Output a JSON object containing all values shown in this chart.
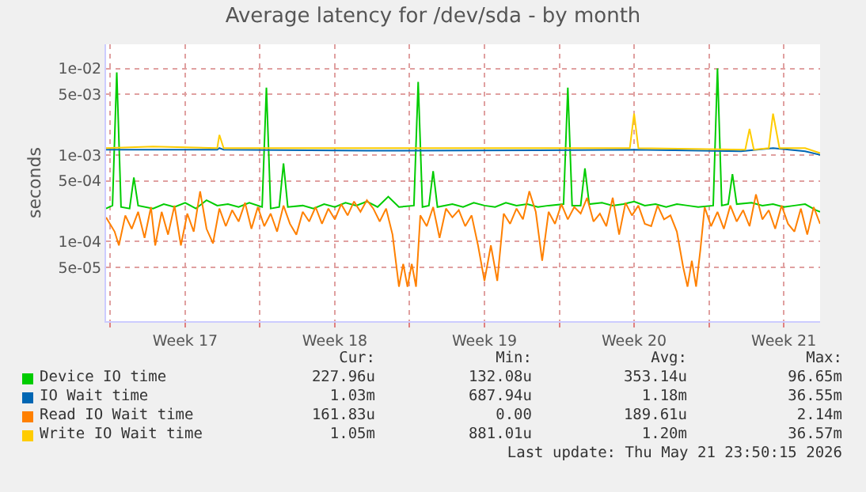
{
  "chart_data": {
    "type": "line",
    "title": "Average latency for /dev/sda - by month",
    "ylabel": "seconds",
    "log": "y",
    "grid": true,
    "legend": "bottom",
    "marker": "none",
    "line_style": "solid",
    "xlim": [
      "2026-04-19T19:12",
      "2026-05-23T04:48"
    ],
    "xticks": [
      {
        "value": "2026-04-20",
        "label": null
      },
      {
        "value": "2026-04-23T12:00",
        "label": "Week 17"
      },
      {
        "value": "2026-04-27",
        "label": null
      },
      {
        "value": "2026-04-30T12:00",
        "label": "Week 18"
      },
      {
        "value": "2026-05-04",
        "label": null
      },
      {
        "value": "2026-05-07T12:00",
        "label": "Week 19"
      },
      {
        "value": "2026-05-11",
        "label": null
      },
      {
        "value": "2026-05-14T12:00",
        "label": "Week 20"
      },
      {
        "value": "2026-05-18",
        "label": null
      },
      {
        "value": "2026-05-21T12:00",
        "label": "Week 21"
      }
    ],
    "ylim": [
      1.2e-05,
      0.019
    ],
    "yticks": [
      {
        "value": 0.01,
        "label": "1e-02"
      },
      {
        "value": 0.005,
        "label": "5e-03"
      },
      {
        "value": 0.001,
        "label": "1e-03"
      },
      {
        "value": 0.0005,
        "label": "5e-04"
      },
      {
        "value": 0.0001,
        "label": "1e-04"
      },
      {
        "value": 5e-05,
        "label": "5e-05"
      }
    ],
    "series": [
      {
        "name": "Device IO time",
        "color": "#00cc00",
        "x": [
          "2026-04-19T19:12",
          "2026-04-20T02:24",
          "2026-04-20T07:12",
          "2026-04-20T12:00",
          "2026-04-20T21:36",
          "2026-04-21T02:24",
          "2026-04-21T07:12",
          "2026-04-22T00:00",
          "2026-04-22T12:00",
          "2026-04-23T00:00",
          "2026-04-23T12:00",
          "2026-04-24T00:00",
          "2026-04-24T12:00",
          "2026-04-25T00:00",
          "2026-04-25T12:00",
          "2026-04-26T00:00",
          "2026-04-26T12:00",
          "2026-04-27T02:24",
          "2026-04-27T07:12",
          "2026-04-27T12:00",
          "2026-04-27T21:36",
          "2026-04-28T02:24",
          "2026-04-28T07:12",
          "2026-04-29T00:00",
          "2026-04-29T12:00",
          "2026-04-30T00:00",
          "2026-04-30T12:00",
          "2026-05-01T00:00",
          "2026-05-01T12:00",
          "2026-05-02T00:00",
          "2026-05-02T12:00",
          "2026-05-03T00:00",
          "2026-05-03T12:00",
          "2026-05-04T04:48",
          "2026-05-04T09:36",
          "2026-05-04T14:24",
          "2026-05-04T21:36",
          "2026-05-05T02:24",
          "2026-05-05T07:12",
          "2026-05-06T00:00",
          "2026-05-06T12:00",
          "2026-05-07T00:00",
          "2026-05-07T12:00",
          "2026-05-08T00:00",
          "2026-05-08T12:00",
          "2026-05-09T00:00",
          "2026-05-09T12:00",
          "2026-05-10T00:00",
          "2026-05-10T12:00",
          "2026-05-11T04:48",
          "2026-05-11T09:36",
          "2026-05-11T14:24",
          "2026-05-12T00:00",
          "2026-05-12T04:48",
          "2026-05-12T09:36",
          "2026-05-13T00:00",
          "2026-05-13T12:00",
          "2026-05-14T00:00",
          "2026-05-14T12:00",
          "2026-05-15T00:00",
          "2026-05-15T12:00",
          "2026-05-16T00:00",
          "2026-05-16T12:00",
          "2026-05-17T00:00",
          "2026-05-17T12:00",
          "2026-05-18T04:48",
          "2026-05-18T09:36",
          "2026-05-18T14:24",
          "2026-05-18T21:36",
          "2026-05-19T02:24",
          "2026-05-19T07:12",
          "2026-05-20T00:00",
          "2026-05-20T12:00",
          "2026-05-21T00:00",
          "2026-05-21T12:00",
          "2026-05-22T00:00",
          "2026-05-22T12:00",
          "2026-05-23T00:00",
          "2026-05-23T04:48"
        ],
        "values": [
          0.00024,
          0.00026,
          0.009,
          0.00025,
          0.00024,
          0.00055,
          0.00026,
          0.00024,
          0.00027,
          0.00025,
          0.00028,
          0.00024,
          0.0003,
          0.00026,
          0.00027,
          0.00025,
          0.00028,
          0.00025,
          0.006,
          0.00024,
          0.00025,
          0.0008,
          0.00025,
          0.00026,
          0.00024,
          0.00027,
          0.00025,
          0.00028,
          0.00026,
          0.00029,
          0.00025,
          0.00033,
          0.00025,
          0.00026,
          0.007,
          0.00025,
          0.00026,
          0.00065,
          0.00025,
          0.00027,
          0.00025,
          0.00028,
          0.00026,
          0.00025,
          0.00028,
          0.00026,
          0.00027,
          0.00025,
          0.00026,
          0.00027,
          0.006,
          0.00026,
          0.00026,
          0.0007,
          0.00027,
          0.00028,
          0.00026,
          0.00027,
          0.00029,
          0.00026,
          0.00027,
          0.00025,
          0.00027,
          0.00026,
          0.00025,
          0.00026,
          0.01,
          0.00026,
          0.00027,
          0.0006,
          0.00027,
          0.00028,
          0.00026,
          0.00027,
          0.00025,
          0.00026,
          0.00027,
          0.00023,
          0.00022
        ]
      },
      {
        "name": "IO Wait time",
        "color": "#0066b3",
        "x": [
          "2026-04-19T19:12",
          "2026-04-25T00:00",
          "2026-04-25T02:24",
          "2026-04-25T07:12",
          "2026-05-02T00:00",
          "2026-05-10T00:00",
          "2026-05-14T12:00",
          "2026-05-19T12:00",
          "2026-05-21T00:00",
          "2026-05-22T12:00",
          "2026-05-23T04:48"
        ],
        "values": [
          0.00115,
          0.00115,
          0.0012,
          0.00115,
          0.00112,
          0.00113,
          0.00115,
          0.0011,
          0.0012,
          0.0011,
          0.001
        ]
      },
      {
        "name": "Read IO Wait time",
        "color": "#ff8000",
        "x": [
          "2026-04-19T19:12",
          "2026-04-20T04:48",
          "2026-04-20T09:36",
          "2026-04-20T16:48",
          "2026-04-21T00:00",
          "2026-04-21T07:12",
          "2026-04-21T14:24",
          "2026-04-21T21:36",
          "2026-04-22T02:24",
          "2026-04-22T09:36",
          "2026-04-22T16:48",
          "2026-04-23T00:00",
          "2026-04-23T07:12",
          "2026-04-23T14:24",
          "2026-04-23T21:36",
          "2026-04-24T04:48",
          "2026-04-24T12:00",
          "2026-04-24T19:12",
          "2026-04-25T02:24",
          "2026-04-25T09:36",
          "2026-04-25T16:48",
          "2026-04-26T00:00",
          "2026-04-26T07:12",
          "2026-04-26T14:24",
          "2026-04-26T21:36",
          "2026-04-27T04:48",
          "2026-04-27T12:00",
          "2026-04-27T19:12",
          "2026-04-28T02:24",
          "2026-04-28T09:36",
          "2026-04-28T16:48",
          "2026-04-29T00:00",
          "2026-04-29T07:12",
          "2026-04-29T14:24",
          "2026-04-29T21:36",
          "2026-04-30T04:48",
          "2026-04-30T12:00",
          "2026-04-30T19:12",
          "2026-05-01T02:24",
          "2026-05-01T09:36",
          "2026-05-01T16:48",
          "2026-05-02T00:00",
          "2026-05-02T07:12",
          "2026-05-02T14:24",
          "2026-05-02T21:36",
          "2026-05-03T04:48",
          "2026-05-03T12:00",
          "2026-05-03T16:48",
          "2026-05-03T21:36",
          "2026-05-04T02:24",
          "2026-05-04T07:12",
          "2026-05-04T12:00",
          "2026-05-04T19:12",
          "2026-05-05T02:24",
          "2026-05-05T09:36",
          "2026-05-05T16:48",
          "2026-05-06T00:00",
          "2026-05-06T07:12",
          "2026-05-06T14:24",
          "2026-05-06T21:36",
          "2026-05-07T04:48",
          "2026-05-07T12:00",
          "2026-05-07T19:12",
          "2026-05-08T02:24",
          "2026-05-08T09:36",
          "2026-05-08T16:48",
          "2026-05-09T00:00",
          "2026-05-09T07:12",
          "2026-05-09T14:24",
          "2026-05-09T21:36",
          "2026-05-10T04:48",
          "2026-05-10T12:00",
          "2026-05-10T19:12",
          "2026-05-11T02:24",
          "2026-05-11T09:36",
          "2026-05-11T16:48",
          "2026-05-12T00:00",
          "2026-05-12T07:12",
          "2026-05-12T14:24",
          "2026-05-12T21:36",
          "2026-05-13T04:48",
          "2026-05-13T12:00",
          "2026-05-13T19:12",
          "2026-05-14T02:24",
          "2026-05-14T09:36",
          "2026-05-14T16:48",
          "2026-05-15T00:00",
          "2026-05-15T07:12",
          "2026-05-15T14:24",
          "2026-05-15T21:36",
          "2026-05-16T04:48",
          "2026-05-16T12:00",
          "2026-05-16T19:12",
          "2026-05-17T00:00",
          "2026-05-17T04:48",
          "2026-05-17T09:36",
          "2026-05-17T14:24",
          "2026-05-17T19:12",
          "2026-05-18T02:24",
          "2026-05-18T09:36",
          "2026-05-18T16:48",
          "2026-05-19T00:00",
          "2026-05-19T07:12",
          "2026-05-19T14:24",
          "2026-05-19T21:36",
          "2026-05-20T04:48",
          "2026-05-20T12:00",
          "2026-05-20T19:12",
          "2026-05-21T02:24",
          "2026-05-21T09:36",
          "2026-05-21T16:48",
          "2026-05-22T00:00",
          "2026-05-22T07:12",
          "2026-05-22T14:24",
          "2026-05-22T21:36",
          "2026-05-23T04:48"
        ],
        "values": [
          0.00019,
          0.00013,
          9e-05,
          0.0002,
          0.00014,
          0.00022,
          0.00011,
          0.00025,
          9e-05,
          0.00022,
          0.00012,
          0.00026,
          9e-05,
          0.00021,
          0.00013,
          0.00038,
          0.00014,
          9.5e-05,
          0.00024,
          0.00015,
          0.00023,
          0.00017,
          0.00028,
          0.00014,
          0.00025,
          0.00015,
          0.00021,
          0.00013,
          0.00026,
          0.00016,
          0.00012,
          0.00022,
          0.00017,
          0.00025,
          0.00016,
          0.00024,
          0.00018,
          0.00027,
          0.0002,
          0.00029,
          0.00022,
          0.0003,
          0.00024,
          0.00017,
          0.00024,
          0.00012,
          3e-05,
          5.5e-05,
          3e-05,
          5.5e-05,
          3e-05,
          0.0002,
          0.00015,
          0.00025,
          0.00011,
          0.00024,
          0.00019,
          0.00023,
          0.00015,
          0.0002,
          9e-05,
          3.5e-05,
          9e-05,
          3.5e-05,
          0.00021,
          0.00016,
          0.00024,
          0.00018,
          0.00038,
          0.00022,
          6e-05,
          0.00022,
          0.00016,
          0.00027,
          0.00018,
          0.00025,
          0.00021,
          0.00032,
          0.00017,
          0.00021,
          0.00015,
          0.00032,
          0.00012,
          0.00028,
          0.0002,
          0.00026,
          0.00016,
          0.00015,
          0.00026,
          0.00018,
          0.0002,
          0.00013,
          5e-05,
          3e-05,
          6e-05,
          3e-05,
          8e-05,
          0.00025,
          0.00015,
          0.00022,
          0.00014,
          0.00026,
          0.00017,
          0.00023,
          0.00015,
          0.00035,
          0.00018,
          0.00023,
          0.00014,
          0.00026,
          0.00016,
          0.00013,
          0.00024,
          0.00012,
          0.00025,
          0.00016
        ]
      },
      {
        "name": "Write IO Wait time",
        "color": "#ffcc00",
        "x": [
          "2026-04-19T19:12",
          "2026-04-22T00:00",
          "2026-04-25T00:00",
          "2026-04-25T02:24",
          "2026-04-25T07:12",
          "2026-05-14T07:12",
          "2026-05-14T12:00",
          "2026-05-14T16:48",
          "2026-05-19T16:48",
          "2026-05-19T21:36",
          "2026-05-20T02:24",
          "2026-05-20T19:12",
          "2026-05-21T00:00",
          "2026-05-21T07:12",
          "2026-05-22T12:00",
          "2026-05-23T04:48"
        ],
        "values": [
          0.0012,
          0.00125,
          0.0012,
          0.0017,
          0.0012,
          0.0012,
          0.003,
          0.0012,
          0.00115,
          0.002,
          0.00115,
          0.0012,
          0.003,
          0.0012,
          0.0012,
          0.00105
        ]
      }
    ],
    "annotations": [
      "Cur:",
      "Min:",
      "Avg:",
      "Max:",
      "227.96u",
      "132.08u",
      "353.14u",
      "96.65m",
      "1.03m",
      "687.94u",
      "1.18m",
      "36.55m",
      "161.83u",
      "0.00",
      "189.61u",
      "2.14m",
      "1.05m",
      "881.01u",
      "1.20m",
      "36.57m",
      "Last update: Thu May 21 23:50:15 2026"
    ]
  }
}
